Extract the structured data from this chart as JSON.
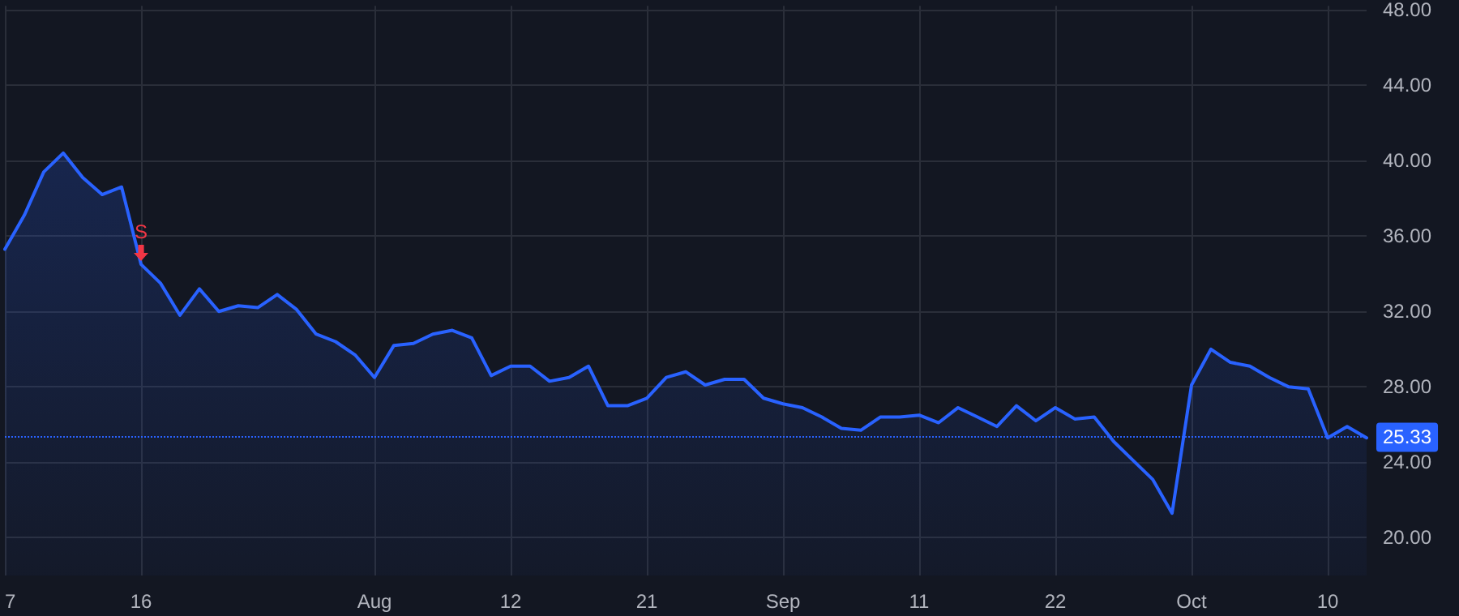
{
  "chart_data": {
    "type": "area",
    "categories": [
      "7",
      null,
      null,
      null,
      null,
      null,
      null,
      "16",
      null,
      null,
      null,
      null,
      null,
      null,
      null,
      null,
      null,
      null,
      null,
      "Aug",
      null,
      null,
      null,
      null,
      null,
      null,
      "12",
      null,
      null,
      null,
      null,
      null,
      null,
      "21",
      null,
      null,
      null,
      null,
      null,
      null,
      "Sep",
      null,
      null,
      null,
      null,
      null,
      null,
      "11",
      null,
      null,
      null,
      null,
      null,
      null,
      "22",
      null,
      null,
      null,
      null,
      null,
      null,
      "Oct",
      null,
      null,
      null,
      null,
      null,
      null,
      "10",
      null,
      null
    ],
    "series": [
      {
        "color": "#2962ff",
        "values": [
          35.3,
          37.1,
          39.4,
          40.4,
          39.1,
          38.2,
          38.6,
          34.5,
          33.5,
          31.8,
          33.2,
          32.0,
          32.3,
          32.2,
          32.9,
          32.1,
          30.8,
          30.4,
          29.7,
          28.5,
          30.2,
          30.3,
          30.8,
          31.0,
          30.6,
          28.6,
          29.1,
          29.1,
          28.3,
          28.5,
          29.1,
          27.0,
          27.0,
          27.4,
          28.5,
          28.8,
          28.1,
          28.4,
          28.4,
          27.4,
          27.1,
          26.9,
          26.4,
          25.8,
          25.7,
          26.4,
          26.4,
          26.5,
          26.1,
          26.9,
          26.4,
          25.9,
          27.0,
          26.2,
          26.9,
          26.3,
          26.4,
          25.1,
          24.1,
          23.1,
          21.3,
          28.1,
          30.0,
          29.3,
          29.1,
          28.5,
          28.0,
          27.9,
          25.3,
          25.9,
          25.3
        ]
      }
    ],
    "ylim": [
      18,
      48.2
    ],
    "yticks": [
      {
        "value": 20,
        "label": "20.00"
      },
      {
        "value": 24,
        "label": "24.00"
      },
      {
        "value": 28,
        "label": "28.00"
      },
      {
        "value": 32,
        "label": "32.00"
      },
      {
        "value": 36,
        "label": "36.00"
      },
      {
        "value": 40,
        "label": "40.00"
      },
      {
        "value": 44,
        "label": "44.00"
      },
      {
        "value": 48,
        "label": "48.00"
      }
    ],
    "ref_lines": [
      {
        "axis": "y",
        "value": 25.33,
        "label": "25.33",
        "color": "#2962ff",
        "line_style": "dotted"
      }
    ],
    "annotations": [
      {
        "text": "S",
        "x": "16",
        "y": 34.5
      }
    ],
    "grid": true,
    "marker": "none",
    "line_style": "solid"
  }
}
